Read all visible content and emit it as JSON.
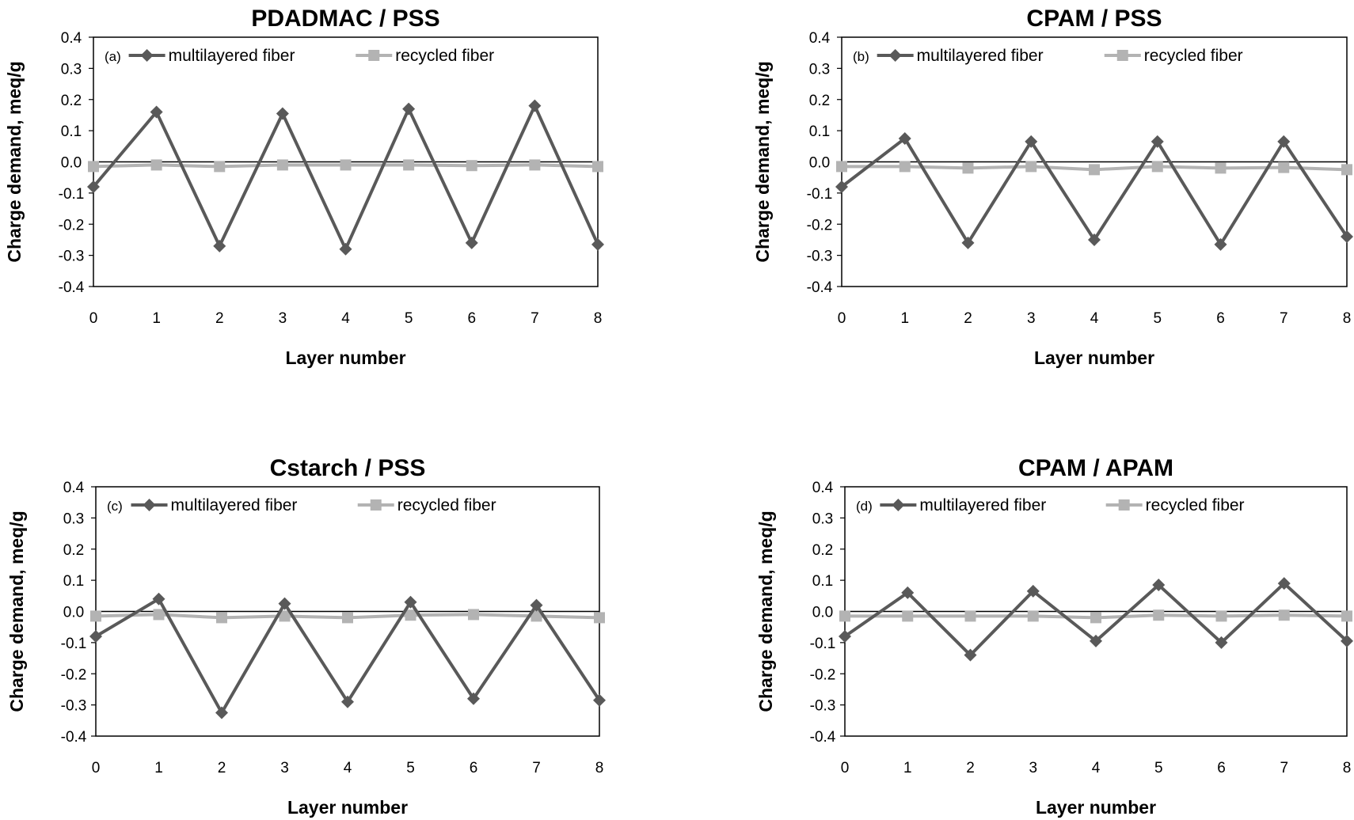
{
  "chart_data": [
    {
      "type": "line",
      "title": "PDADMAC / PSS",
      "panel_label": "(a)",
      "xlabel": "Layer number",
      "ylabel": "Charge demand,  meq/g",
      "xlim": [
        0,
        8
      ],
      "ylim": [
        -0.4,
        0.4
      ],
      "x": [
        0,
        1,
        2,
        3,
        4,
        5,
        6,
        7,
        8
      ],
      "yticks": [
        "0.4",
        "0.3",
        "0.2",
        "0.1",
        "0.0",
        "-0.1",
        "-0.2",
        "-0.3",
        "-0.4"
      ],
      "grid": false,
      "legend_position": "top",
      "series": [
        {
          "name": "multilayered fiber",
          "color": "#595959",
          "marker": "diamond",
          "values": [
            -0.08,
            0.16,
            -0.27,
            0.155,
            -0.28,
            0.17,
            -0.26,
            0.18,
            -0.265
          ]
        },
        {
          "name": "recycled fiber",
          "color": "#b3b3b3",
          "marker": "square",
          "values": [
            -0.015,
            -0.01,
            -0.015,
            -0.01,
            -0.01,
            -0.01,
            -0.012,
            -0.01,
            -0.015
          ]
        }
      ]
    },
    {
      "type": "line",
      "title": "CPAM / PSS",
      "panel_label": "(b)",
      "xlabel": "Layer number",
      "ylabel": "Charge demand,  meq/g",
      "xlim": [
        0,
        8
      ],
      "ylim": [
        -0.4,
        0.4
      ],
      "x": [
        0,
        1,
        2,
        3,
        4,
        5,
        6,
        7,
        8
      ],
      "yticks": [
        "0.4",
        "0.3",
        "0.2",
        "0.1",
        "0.0",
        "-0.1",
        "-0.2",
        "-0.3",
        "-0.4"
      ],
      "grid": false,
      "legend_position": "top",
      "series": [
        {
          "name": "multilayered fiber",
          "color": "#595959",
          "marker": "diamond",
          "values": [
            -0.08,
            0.075,
            -0.26,
            0.065,
            -0.25,
            0.065,
            -0.265,
            0.065,
            -0.24
          ]
        },
        {
          "name": "recycled fiber",
          "color": "#b3b3b3",
          "marker": "square",
          "values": [
            -0.015,
            -0.015,
            -0.02,
            -0.015,
            -0.025,
            -0.015,
            -0.02,
            -0.018,
            -0.025
          ]
        }
      ]
    },
    {
      "type": "line",
      "title": "Cstarch / PSS",
      "panel_label": "(c)",
      "xlabel": "Layer number",
      "ylabel": "Charge demand,  meq/g",
      "xlim": [
        0,
        8
      ],
      "ylim": [
        -0.4,
        0.4
      ],
      "x": [
        0,
        1,
        2,
        3,
        4,
        5,
        6,
        7,
        8
      ],
      "yticks": [
        "0.4",
        "0.3",
        "0.2",
        "0.1",
        "0.0",
        "-0.1",
        "-0.2",
        "-0.3",
        "-0.4"
      ],
      "grid": false,
      "legend_position": "top",
      "series": [
        {
          "name": "multilayered fiber",
          "color": "#595959",
          "marker": "diamond",
          "values": [
            -0.08,
            0.04,
            -0.325,
            0.025,
            -0.29,
            0.03,
            -0.28,
            0.02,
            -0.285
          ]
        },
        {
          "name": "recycled fiber",
          "color": "#b3b3b3",
          "marker": "square",
          "values": [
            -0.015,
            -0.01,
            -0.02,
            -0.015,
            -0.02,
            -0.012,
            -0.01,
            -0.015,
            -0.02
          ]
        }
      ]
    },
    {
      "type": "line",
      "title": "CPAM / APAM",
      "panel_label": "(d)",
      "xlabel": "Layer number",
      "ylabel": "Charge demand,  meq/g",
      "xlim": [
        0,
        8
      ],
      "ylim": [
        -0.4,
        0.4
      ],
      "x": [
        0,
        1,
        2,
        3,
        4,
        5,
        6,
        7,
        8
      ],
      "yticks": [
        "0.4",
        "0.3",
        "0.2",
        "0.1",
        "0.0",
        "-0.1",
        "-0.2",
        "-0.3",
        "-0.4"
      ],
      "grid": false,
      "legend_position": "top",
      "series": [
        {
          "name": "multilayered fiber",
          "color": "#595959",
          "marker": "diamond",
          "values": [
            -0.08,
            0.06,
            -0.14,
            0.065,
            -0.095,
            0.085,
            -0.1,
            0.09,
            -0.095
          ]
        },
        {
          "name": "recycled fiber",
          "color": "#b3b3b3",
          "marker": "square",
          "values": [
            -0.015,
            -0.015,
            -0.015,
            -0.015,
            -0.02,
            -0.012,
            -0.015,
            -0.012,
            -0.015
          ]
        }
      ]
    }
  ]
}
